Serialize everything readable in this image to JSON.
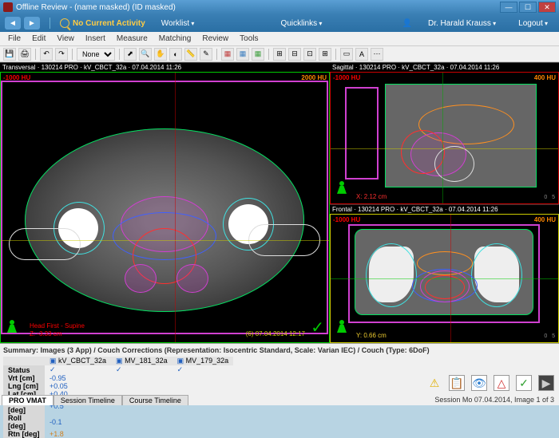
{
  "window": {
    "title": "Offline Review - (name masked) (ID masked)"
  },
  "topbar": {
    "activity": "No Current Activity",
    "worklist": "Worklist",
    "quicklinks": "Quicklinks",
    "user_prefix": "Dr.",
    "user": "Dr. Harald Krauss",
    "logout": "Logout"
  },
  "menu": {
    "items": [
      "File",
      "Edit",
      "View",
      "Insert",
      "Measure",
      "Matching",
      "Review",
      "Tools"
    ]
  },
  "toolbar": {
    "mode_label": "None"
  },
  "views": {
    "transversal": {
      "title": "Transversal · 130214 PRO · kV_CBCT_32a · 07.04.2014 11:26",
      "hu_low": "-1000 HU",
      "hu_high": "2000 HU",
      "overlay1": "Head First - Supine",
      "overlay2": "Z: -3.33 cm",
      "timestamp": "(6)  07.04.2014 12:17",
      "border_color": "#00cc00"
    },
    "sagittal": {
      "title": "Sagittal · 130214 PRO · kV_CBCT_32a · 07.04.2014 11:26",
      "hu_low": "-1000 HU",
      "hu_high": "400 HU",
      "overlay": "X: 2.12 cm",
      "overlay_color": "#ff3030",
      "border_color": "#cc0000"
    },
    "frontal": {
      "title": "Frontal · 130214 PRO · kV_CBCT_32a · 07.04.2014 11:26",
      "hu_low": "-1000 HU",
      "hu_high": "400 HU",
      "overlay": "Y: 0.66 cm",
      "overlay_color": "#eecc30",
      "border_color": "#cccc00"
    }
  },
  "contour_colors": {
    "body": "#00e060",
    "ptv": "#d040d0",
    "bladder": "#4060ff",
    "rectum": "#ff3030",
    "femur": "#40e0e0",
    "bowel": "#ff9020"
  },
  "summary": {
    "line": "Summary: Images (3 App) / Couch Corrections (Representation: Isocentric Standard, Scale: Varian IEC) / Couch (Type: 6DoF)",
    "headers": [
      "",
      "kV_CBCT_32a",
      "MV_181_32a",
      "MV_179_32a"
    ],
    "status_row": [
      "Status",
      "✓",
      "✓",
      "✓"
    ],
    "rows": [
      {
        "label": "Vrt [cm]",
        "value": "-0.95",
        "class": "val-blue"
      },
      {
        "label": "Lng [cm]",
        "value": "+0.05",
        "class": "val-blue"
      },
      {
        "label": "Lat [cm]",
        "value": "+0.40",
        "class": "val-blue"
      },
      {
        "label": "Pitch [deg]",
        "value": "+0.5",
        "class": "val-blue"
      },
      {
        "label": "Roll [deg]",
        "value": "-0.1",
        "class": "val-blue"
      },
      {
        "label": "Rtn [deg]",
        "value": "+1.8",
        "class": "val-orange"
      }
    ]
  },
  "tabs": {
    "items": [
      "PRO VMAT",
      "Session Timeline",
      "Course Timeline"
    ],
    "active": 0
  },
  "status": {
    "text": "Session Mo 07.04.2014, Image 1 of 3",
    "icons": [
      "⚠",
      "📋",
      "👁",
      "△",
      "✓",
      "▶"
    ]
  }
}
